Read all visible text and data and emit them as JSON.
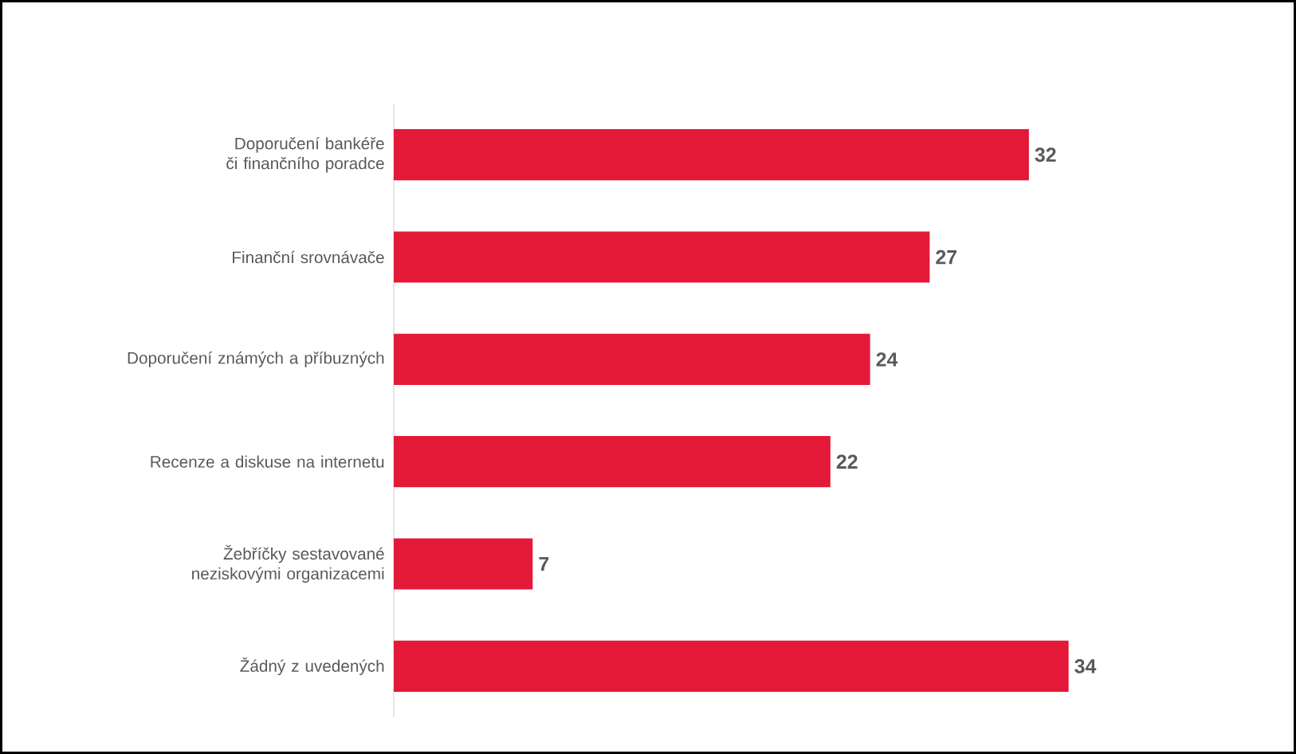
{
  "chart_data": {
    "type": "bar",
    "orientation": "horizontal",
    "categories": [
      "Doporučení bankéře či finančního poradce",
      "Finanční srovnávače",
      "Doporučení známých a příbuzných",
      "Recenze a diskuse na internetu",
      "Žebříčky sestavované neziskovými organizacemi",
      "Žádný z uvedených"
    ],
    "values": [
      32,
      27,
      24,
      22,
      7,
      34
    ],
    "color": "#e31937",
    "data_labels": true
  }
}
